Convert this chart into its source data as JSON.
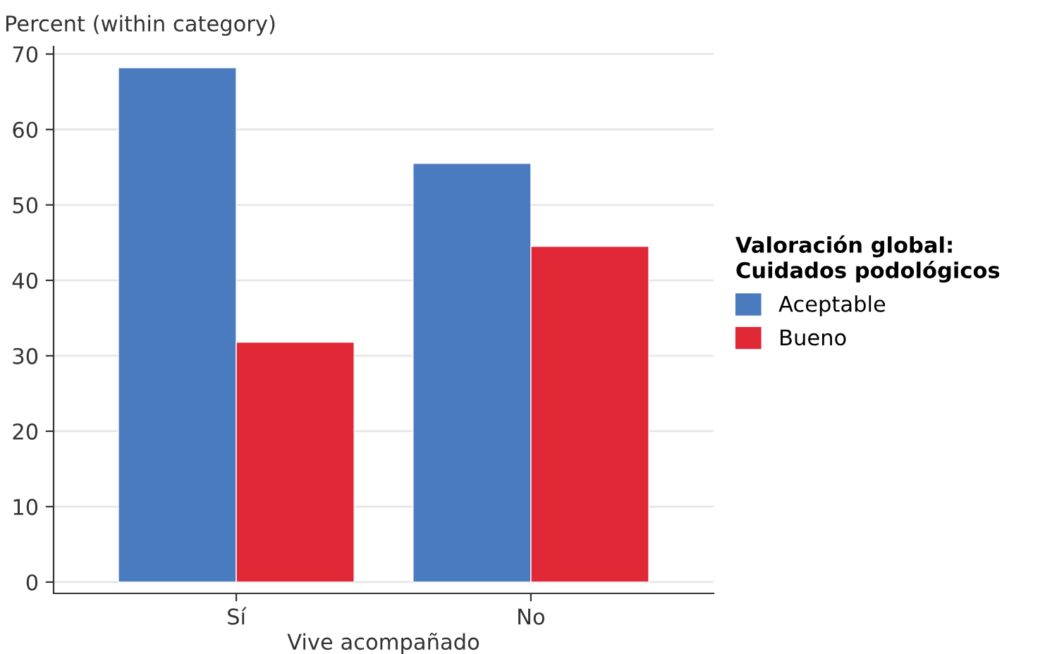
{
  "chart_data": {
    "type": "bar",
    "categories": [
      "Sí",
      "No"
    ],
    "xlabel": "Vive acompañado",
    "ylabel": "Percent (within category)",
    "legend_title": "Valoración global:\nCuidados podológicos",
    "series": [
      {
        "name": "Aceptable",
        "color": "#4a7bbf",
        "values": [
          68.2,
          55.5
        ]
      },
      {
        "name": "Bueno",
        "color": "#e12837",
        "values": [
          31.8,
          44.5
        ]
      }
    ],
    "ylim": [
      -1.5,
      71
    ],
    "yticks": [
      0,
      10,
      20,
      30,
      40,
      50,
      60,
      70
    ],
    "grid": "y",
    "legend": "right"
  }
}
